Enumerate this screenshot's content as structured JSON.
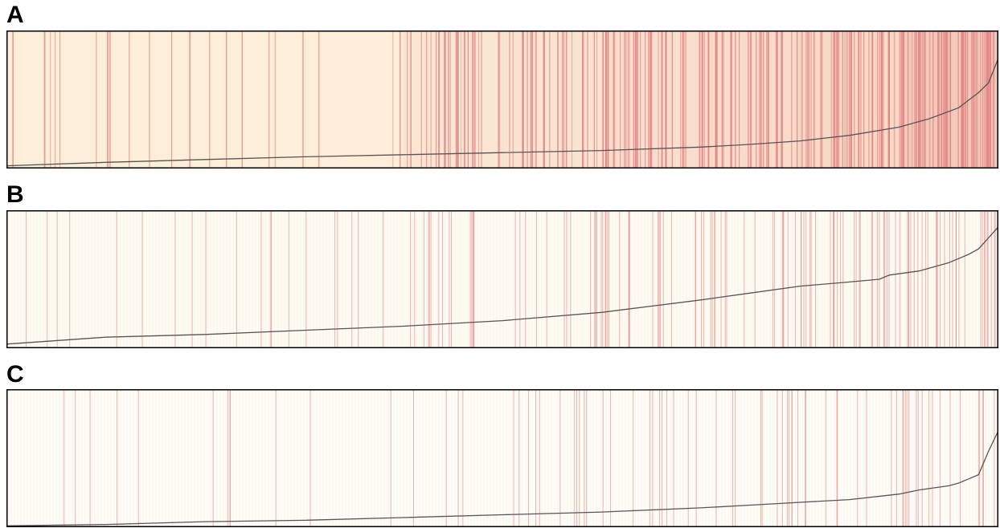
{
  "colors": {
    "panel_a_background": "#fdeeda",
    "panel_b_background": "#fefbf2",
    "panel_c_background": "#fefcf6",
    "highlight_line": "#e07a7a",
    "curve": "#555555",
    "frame": "#000000"
  },
  "chart_data": [
    {
      "type": "line",
      "panel": "A",
      "x_range": [
        0,
        1
      ],
      "y_range": [
        0,
        1
      ],
      "grid": false,
      "curve": {
        "x": [
          0,
          0.1,
          0.2,
          0.3,
          0.4,
          0.5,
          0.6,
          0.7,
          0.75,
          0.8,
          0.85,
          0.9,
          0.93,
          0.96,
          0.98,
          0.99,
          1.0
        ],
        "y": [
          0.02,
          0.045,
          0.065,
          0.085,
          0.1,
          0.115,
          0.13,
          0.155,
          0.175,
          0.2,
          0.24,
          0.3,
          0.36,
          0.44,
          0.55,
          0.62,
          0.8
        ]
      },
      "highlight_density": [
        0.1,
        0.12,
        0.1,
        0.05,
        0.45,
        0.4,
        0.6,
        0.6,
        0.7,
        0.95
      ],
      "heat_gradient": [
        0.0,
        0.0,
        0.0,
        0.02,
        0.15,
        0.2,
        0.3,
        0.35,
        0.4,
        0.7
      ]
    },
    {
      "type": "line",
      "panel": "B",
      "x_range": [
        0,
        1
      ],
      "y_range": [
        0,
        1
      ],
      "grid": false,
      "curve": {
        "x": [
          0,
          0.1,
          0.2,
          0.3,
          0.4,
          0.5,
          0.6,
          0.7,
          0.75,
          0.8,
          0.85,
          0.88,
          0.89,
          0.92,
          0.95,
          0.96,
          0.97,
          0.98,
          0.99,
          1.0
        ],
        "y": [
          0.03,
          0.08,
          0.1,
          0.13,
          0.16,
          0.2,
          0.26,
          0.35,
          0.4,
          0.45,
          0.48,
          0.5,
          0.53,
          0.56,
          0.62,
          0.65,
          0.68,
          0.72,
          0.8,
          0.88
        ]
      },
      "highlight_density": [
        0.06,
        0.06,
        0.1,
        0.1,
        0.25,
        0.22,
        0.3,
        0.3,
        0.45,
        0.5
      ],
      "heat_gradient": [
        0,
        0,
        0,
        0,
        0,
        0,
        0,
        0,
        0,
        0
      ]
    },
    {
      "type": "line",
      "panel": "C",
      "x_range": [
        0,
        1
      ],
      "y_range": [
        0,
        1
      ],
      "grid": false,
      "curve": {
        "x": [
          0,
          0.1,
          0.2,
          0.3,
          0.4,
          0.5,
          0.6,
          0.7,
          0.75,
          0.8,
          0.85,
          0.9,
          0.92,
          0.95,
          0.96,
          0.97,
          0.98,
          0.99,
          1.0
        ],
        "y": [
          0.01,
          0.02,
          0.04,
          0.05,
          0.07,
          0.09,
          0.11,
          0.14,
          0.16,
          0.18,
          0.2,
          0.24,
          0.27,
          0.3,
          0.32,
          0.35,
          0.38,
          0.55,
          0.7
        ]
      },
      "highlight_density": [
        0.05,
        0.04,
        0.08,
        0.04,
        0.06,
        0.18,
        0.18,
        0.2,
        0.15,
        0.3
      ],
      "heat_gradient": [
        0,
        0,
        0,
        0,
        0,
        0,
        0,
        0,
        0,
        0
      ]
    }
  ],
  "labels": {
    "panel_a": "A",
    "panel_b": "B",
    "panel_c": "C"
  }
}
